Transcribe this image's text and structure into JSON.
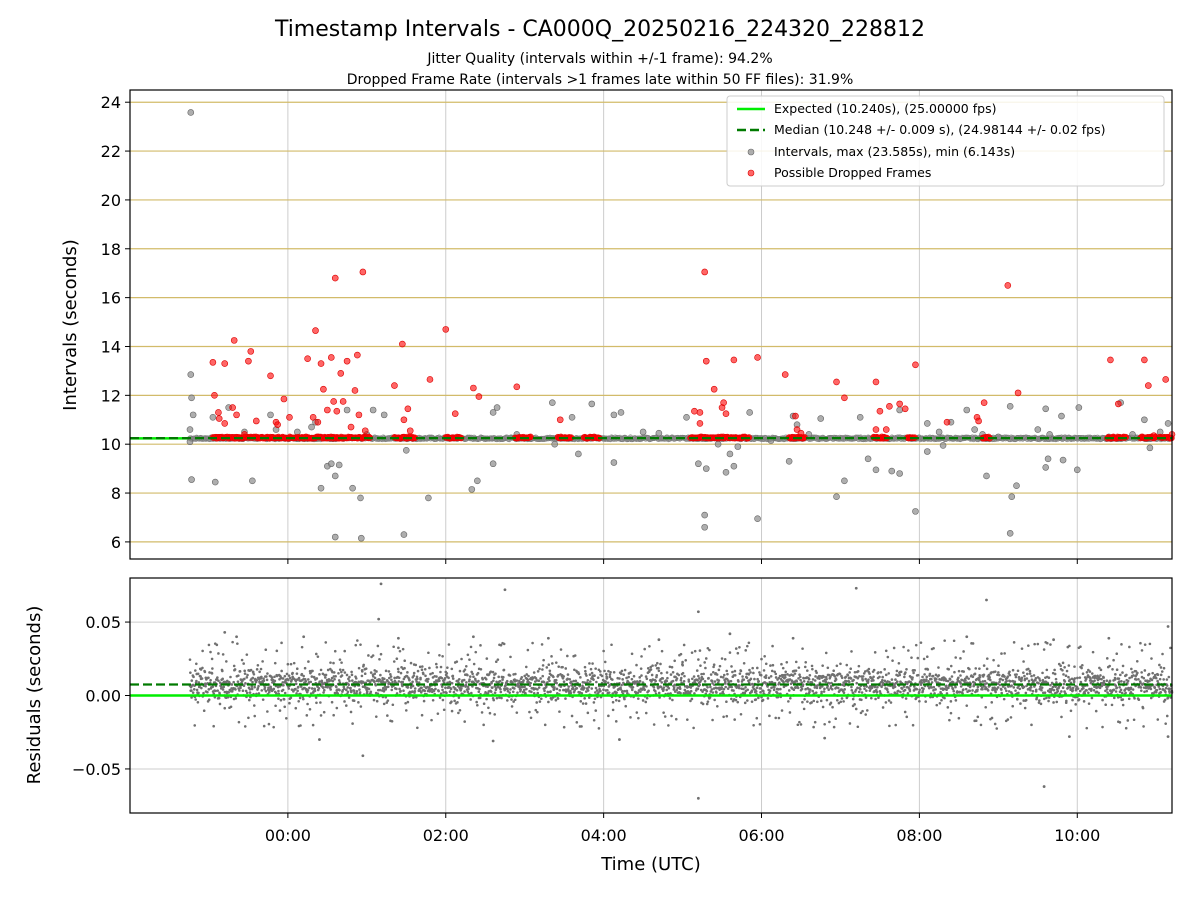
{
  "figure": {
    "title": "Timestamp Intervals - CA000Q_20250216_224320_228812",
    "subtitle_lines": [
      "Jitter Quality (intervals within +/-1 frame): 94.2%",
      "Dropped Frame Rate (intervals >1 frames late within 50 FF files): 31.9%"
    ]
  },
  "colors": {
    "expected": "#00ee00",
    "median": "#007a00",
    "intervals": "#8c8c8c",
    "dropped": "#ff0000",
    "residuals": "#707070",
    "hgrid_top": "#d2bb6a",
    "grid": "#cccccc"
  },
  "chart_data": [
    {
      "type": "scatter",
      "ylabel": "Intervals (seconds)",
      "xlabel": "",
      "x_unit": "hours (UTC)",
      "xlim": [
        -2.0,
        11.2
      ],
      "ylim": [
        5.3,
        24.5
      ],
      "yticks": [
        6,
        8,
        10,
        12,
        14,
        16,
        18,
        20,
        22,
        24
      ],
      "grid": "on",
      "legend_position": "top-right",
      "lines": [
        {
          "name": "Expected (10.240s), (25.00000 fps)",
          "y": 10.24,
          "style": "solid"
        },
        {
          "name": "Median (10.248 +/- 0.009 s), (24.98144 +/- 0.02 fps)",
          "y": 10.248,
          "style": "dashed"
        }
      ],
      "series": [
        {
          "name": "Intervals, max (23.585s), min (6.143s)",
          "points": [
            [
              -1.23,
              23.58
            ],
            [
              -1.23,
              12.85
            ],
            [
              -1.22,
              11.9
            ],
            [
              -1.2,
              11.2
            ],
            [
              -1.24,
              10.6
            ],
            [
              -1.24,
              10.1
            ],
            [
              -1.22,
              8.55
            ],
            [
              -0.95,
              11.1
            ],
            [
              -0.92,
              8.45
            ],
            [
              -0.75,
              11.5
            ],
            [
              -0.45,
              8.5
            ],
            [
              -0.22,
              11.2
            ],
            [
              -0.15,
              10.6
            ],
            [
              0.12,
              10.5
            ],
            [
              0.3,
              10.7
            ],
            [
              0.35,
              10.9
            ],
            [
              0.42,
              8.2
            ],
            [
              0.5,
              9.1
            ],
            [
              0.55,
              9.2
            ],
            [
              0.6,
              8.7
            ],
            [
              0.6,
              6.2
            ],
            [
              0.65,
              9.15
            ],
            [
              0.75,
              11.4
            ],
            [
              0.82,
              8.2
            ],
            [
              0.92,
              7.8
            ],
            [
              0.93,
              6.15
            ],
            [
              1.08,
              11.4
            ],
            [
              1.22,
              11.2
            ],
            [
              1.5,
              9.75
            ],
            [
              1.47,
              6.3
            ],
            [
              1.78,
              7.8
            ],
            [
              2.33,
              8.15
            ],
            [
              2.4,
              8.5
            ],
            [
              2.6,
              9.2
            ],
            [
              2.6,
              11.3
            ],
            [
              2.65,
              11.5
            ],
            [
              3.35,
              11.7
            ],
            [
              3.38,
              10.0
            ],
            [
              3.6,
              11.1
            ],
            [
              3.68,
              9.6
            ],
            [
              3.85,
              11.65
            ],
            [
              4.13,
              11.2
            ],
            [
              4.22,
              11.3
            ],
            [
              4.13,
              9.25
            ],
            [
              4.5,
              10.5
            ],
            [
              5.05,
              11.1
            ],
            [
              5.2,
              9.2
            ],
            [
              5.3,
              9.0
            ],
            [
              5.28,
              7.1
            ],
            [
              5.28,
              6.6
            ],
            [
              5.45,
              10.0
            ],
            [
              5.55,
              8.85
            ],
            [
              5.6,
              9.6
            ],
            [
              5.65,
              9.1
            ],
            [
              5.7,
              9.9
            ],
            [
              5.85,
              11.3
            ],
            [
              5.95,
              6.95
            ],
            [
              6.12,
              10.15
            ],
            [
              6.35,
              9.3
            ],
            [
              6.4,
              11.15
            ],
            [
              6.45,
              10.8
            ],
            [
              6.75,
              11.05
            ],
            [
              6.95,
              7.85
            ],
            [
              7.05,
              8.5
            ],
            [
              7.25,
              11.1
            ],
            [
              7.35,
              9.4
            ],
            [
              7.45,
              8.95
            ],
            [
              7.65,
              8.9
            ],
            [
              7.75,
              8.8
            ],
            [
              7.75,
              11.4
            ],
            [
              7.95,
              7.25
            ],
            [
              8.1,
              10.85
            ],
            [
              8.1,
              9.7
            ],
            [
              8.25,
              10.5
            ],
            [
              8.3,
              9.95
            ],
            [
              8.4,
              10.9
            ],
            [
              8.6,
              11.4
            ],
            [
              8.7,
              10.6
            ],
            [
              8.8,
              10.4
            ],
            [
              8.85,
              8.7
            ],
            [
              9.15,
              11.55
            ],
            [
              9.17,
              7.85
            ],
            [
              9.15,
              6.35
            ],
            [
              9.23,
              8.3
            ],
            [
              9.5,
              10.6
            ],
            [
              9.6,
              11.45
            ],
            [
              9.63,
              9.4
            ],
            [
              9.6,
              9.05
            ],
            [
              9.65,
              10.4
            ],
            [
              9.8,
              11.15
            ],
            [
              9.82,
              9.35
            ],
            [
              10.02,
              11.5
            ],
            [
              10.0,
              8.95
            ],
            [
              10.4,
              10.3
            ],
            [
              10.55,
              11.7
            ],
            [
              10.7,
              10.4
            ],
            [
              10.85,
              11.0
            ],
            [
              10.92,
              9.85
            ],
            [
              11.05,
              10.5
            ],
            [
              11.15,
              10.85
            ],
            [
              -0.55,
              10.5
            ],
            [
              1.0,
              10.4
            ],
            [
              2.9,
              10.4
            ],
            [
              4.7,
              10.45
            ],
            [
              6.6,
              10.4
            ],
            [
              9.0,
              10.3
            ]
          ]
        },
        {
          "name": "Possible Dropped Frames",
          "points": [
            [
              -0.95,
              13.35
            ],
            [
              -0.93,
              12.0
            ],
            [
              -0.88,
              11.3
            ],
            [
              -0.87,
              11.05
            ],
            [
              -0.8,
              10.85
            ],
            [
              -0.8,
              13.3
            ],
            [
              -0.7,
              11.5
            ],
            [
              -0.68,
              14.25
            ],
            [
              -0.65,
              11.2
            ],
            [
              -0.55,
              10.4
            ],
            [
              -0.5,
              13.4
            ],
            [
              -0.47,
              13.8
            ],
            [
              -0.4,
              10.95
            ],
            [
              -0.22,
              12.8
            ],
            [
              -0.15,
              10.9
            ],
            [
              -0.13,
              10.8
            ],
            [
              -0.05,
              11.85
            ],
            [
              0.02,
              11.1
            ],
            [
              0.25,
              13.5
            ],
            [
              0.32,
              11.1
            ],
            [
              0.35,
              14.65
            ],
            [
              0.38,
              10.9
            ],
            [
              0.42,
              13.3
            ],
            [
              0.45,
              12.25
            ],
            [
              0.5,
              11.4
            ],
            [
              0.55,
              13.55
            ],
            [
              0.58,
              11.75
            ],
            [
              0.6,
              16.8
            ],
            [
              0.62,
              11.35
            ],
            [
              0.67,
              12.9
            ],
            [
              0.7,
              11.75
            ],
            [
              0.75,
              13.4
            ],
            [
              0.8,
              10.7
            ],
            [
              0.85,
              12.2
            ],
            [
              0.88,
              13.65
            ],
            [
              0.9,
              11.2
            ],
            [
              0.95,
              17.05
            ],
            [
              0.98,
              10.55
            ],
            [
              1.35,
              12.4
            ],
            [
              1.45,
              14.1
            ],
            [
              1.47,
              11.0
            ],
            [
              1.52,
              11.45
            ],
            [
              1.55,
              10.55
            ],
            [
              1.8,
              12.65
            ],
            [
              2.0,
              14.7
            ],
            [
              2.12,
              11.25
            ],
            [
              2.35,
              12.3
            ],
            [
              2.42,
              11.95
            ],
            [
              2.9,
              12.35
            ],
            [
              3.45,
              11.0
            ],
            [
              5.15,
              11.35
            ],
            [
              5.22,
              11.3
            ],
            [
              5.22,
              10.85
            ],
            [
              5.28,
              17.05
            ],
            [
              5.3,
              13.4
            ],
            [
              5.4,
              12.25
            ],
            [
              5.5,
              11.5
            ],
            [
              5.52,
              11.7
            ],
            [
              5.55,
              11.25
            ],
            [
              5.65,
              13.45
            ],
            [
              5.95,
              13.55
            ],
            [
              6.3,
              12.85
            ],
            [
              6.43,
              11.15
            ],
            [
              6.45,
              10.6
            ],
            [
              6.5,
              10.45
            ],
            [
              6.95,
              12.55
            ],
            [
              7.05,
              11.9
            ],
            [
              7.45,
              12.55
            ],
            [
              7.45,
              10.6
            ],
            [
              7.5,
              11.35
            ],
            [
              7.58,
              10.6
            ],
            [
              7.62,
              11.55
            ],
            [
              7.75,
              11.65
            ],
            [
              7.82,
              11.45
            ],
            [
              7.95,
              13.25
            ],
            [
              8.35,
              10.9
            ],
            [
              8.73,
              11.1
            ],
            [
              8.75,
              10.95
            ],
            [
              8.82,
              11.7
            ],
            [
              9.12,
              16.5
            ],
            [
              9.25,
              12.1
            ],
            [
              10.42,
              13.45
            ],
            [
              10.52,
              11.65
            ],
            [
              10.85,
              13.45
            ],
            [
              10.9,
              12.4
            ],
            [
              10.97,
              10.35
            ],
            [
              11.12,
              12.65
            ],
            [
              11.2,
              10.4
            ]
          ]
        }
      ]
    },
    {
      "type": "scatter",
      "ylabel": "Residuals (seconds)",
      "xlabel": "Time (UTC)",
      "x_unit": "hours (UTC)",
      "xlim": [
        -2.0,
        11.2
      ],
      "ylim": [
        -0.08,
        0.08
      ],
      "yticks": [
        -0.05,
        0.0,
        0.05
      ],
      "ytick_labels": [
        "−0.05",
        "0.00",
        "0.05"
      ],
      "xtick_labels": [
        "00:00",
        "02:00",
        "04:00",
        "06:00",
        "08:00",
        "10:00"
      ],
      "xtick_values": [
        0,
        2,
        4,
        6,
        8,
        10
      ],
      "grid": "on",
      "lines": [
        {
          "name": "expected-zero",
          "y": 0.0,
          "style": "solid"
        },
        {
          "name": "median-offset",
          "y": 0.0075,
          "style": "dashed"
        }
      ],
      "series": [
        {
          "name": "Residuals",
          "points": [
            [
              1.18,
              0.076
            ],
            [
              2.75,
              0.072
            ],
            [
              7.2,
              0.073
            ],
            [
              8.85,
              0.065
            ],
            [
              5.2,
              0.057
            ],
            [
              1.15,
              0.052
            ],
            [
              11.15,
              0.047
            ],
            [
              -0.8,
              0.043
            ],
            [
              5.6,
              0.042
            ],
            [
              0.95,
              -0.041
            ],
            [
              9.58,
              -0.062
            ],
            [
              5.2,
              -0.07
            ],
            [
              -0.65,
              0.04
            ],
            [
              0.2,
              0.04
            ],
            [
              1.4,
              0.039
            ],
            [
              2.35,
              0.04
            ],
            [
              3.3,
              0.039
            ],
            [
              4.7,
              0.038
            ],
            [
              6.4,
              0.039
            ],
            [
              8.6,
              0.04
            ],
            [
              9.7,
              0.038
            ],
            [
              10.4,
              0.039
            ],
            [
              0.4,
              -0.03
            ],
            [
              2.6,
              -0.031
            ],
            [
              4.2,
              -0.03
            ],
            [
              6.8,
              -0.029
            ],
            [
              9.9,
              -0.028
            ],
            [
              11.15,
              -0.028
            ]
          ]
        }
      ]
    }
  ]
}
